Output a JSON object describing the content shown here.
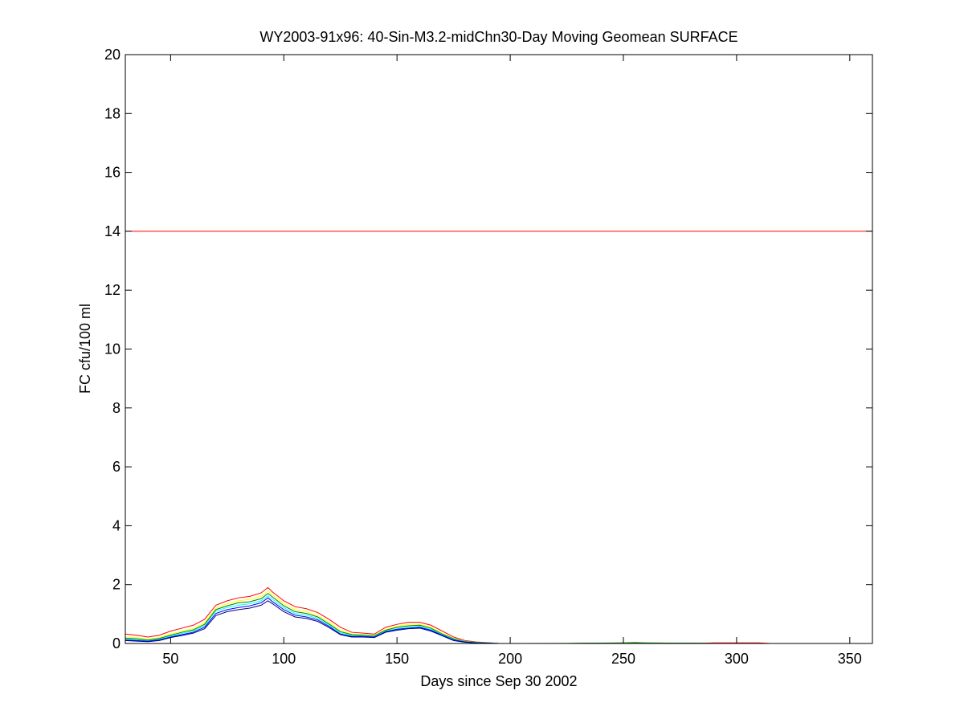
{
  "chart_data": {
    "type": "line",
    "title": "WY2003-91x96: 40-Sin-M3.2-midChn30-Day Moving Geomean SURFACE",
    "xlabel": "Days since Sep 30 2002",
    "ylabel": "FC cfu/100 ml",
    "xlim": [
      30,
      360
    ],
    "ylim": [
      0,
      20
    ],
    "xticks": [
      50,
      100,
      150,
      200,
      250,
      300,
      350
    ],
    "yticks": [
      0,
      2,
      4,
      6,
      8,
      10,
      12,
      14,
      16,
      18,
      20
    ],
    "grid": false,
    "legend": "none",
    "reference_line": {
      "y": 14,
      "color": "#ff0000"
    },
    "x": [
      30,
      35,
      40,
      45,
      50,
      55,
      60,
      65,
      70,
      75,
      80,
      85,
      90,
      93,
      95,
      100,
      105,
      110,
      115,
      120,
      125,
      130,
      135,
      140,
      145,
      150,
      155,
      160,
      165,
      170,
      175,
      180,
      185,
      190,
      195,
      200,
      225,
      230,
      240,
      250,
      255,
      260,
      270,
      280,
      285,
      290,
      300,
      310,
      315,
      320,
      330,
      340,
      350,
      360
    ],
    "series": [
      {
        "color": "#ff0000",
        "values": [
          0.32,
          0.28,
          0.22,
          0.28,
          0.42,
          0.52,
          0.62,
          0.82,
          1.3,
          1.45,
          1.55,
          1.6,
          1.72,
          1.9,
          1.75,
          1.45,
          1.25,
          1.18,
          1.05,
          0.82,
          0.55,
          0.38,
          0.35,
          0.32,
          0.55,
          0.65,
          0.72,
          0.72,
          0.62,
          0.42,
          0.22,
          0.1,
          0.05,
          0.03,
          0.0,
          0.0,
          0.0,
          0.0,
          0.0,
          0.0,
          0.0,
          0.0,
          0.01,
          0.01,
          0.01,
          0.02,
          0.02,
          0.02,
          0.0,
          0.0,
          0.0,
          0.0,
          0.0,
          0.0
        ]
      },
      {
        "color": "#ffff00",
        "values": [
          0.22,
          0.2,
          0.15,
          0.2,
          0.32,
          0.42,
          0.5,
          0.7,
          1.2,
          1.35,
          1.45,
          1.5,
          1.6,
          1.78,
          1.65,
          1.35,
          1.15,
          1.08,
          0.95,
          0.72,
          0.45,
          0.32,
          0.3,
          0.28,
          0.48,
          0.58,
          0.65,
          0.65,
          0.55,
          0.35,
          0.18,
          0.08,
          0.04,
          0.02,
          0.0,
          0.0,
          0.0,
          0.0,
          0.0,
          0.0,
          0.0,
          0.0,
          0.0,
          0.0,
          0.0,
          0.0,
          0.0,
          0.0,
          0.0,
          0.0,
          0.0,
          0.0,
          0.0,
          0.0
        ]
      },
      {
        "color": "#008000",
        "values": [
          0.18,
          0.16,
          0.12,
          0.17,
          0.28,
          0.38,
          0.46,
          0.65,
          1.15,
          1.28,
          1.38,
          1.42,
          1.52,
          1.7,
          1.58,
          1.28,
          1.08,
          1.02,
          0.9,
          0.66,
          0.4,
          0.3,
          0.28,
          0.26,
          0.45,
          0.55,
          0.6,
          0.62,
          0.52,
          0.32,
          0.16,
          0.07,
          0.04,
          0.02,
          0.0,
          0.0,
          0.005,
          0.01,
          0.015,
          0.02,
          0.03,
          0.02,
          0.015,
          0.015,
          0.01,
          0.0,
          0.0,
          0.0,
          0.0,
          0.0,
          0.0,
          0.0,
          0.0,
          0.0
        ]
      },
      {
        "color": "#00ffff",
        "values": [
          0.14,
          0.13,
          0.1,
          0.14,
          0.25,
          0.34,
          0.42,
          0.6,
          1.1,
          1.22,
          1.3,
          1.35,
          1.45,
          1.62,
          1.5,
          1.22,
          1.02,
          0.96,
          0.85,
          0.62,
          0.36,
          0.27,
          0.26,
          0.24,
          0.42,
          0.5,
          0.56,
          0.58,
          0.48,
          0.3,
          0.14,
          0.06,
          0.03,
          0.02,
          0.0,
          0.0,
          0.0,
          0.0,
          0.0,
          0.0,
          0.0,
          0.0,
          0.0,
          0.0,
          0.0,
          0.0,
          0.0,
          0.0,
          0.0,
          0.0,
          0.0,
          0.0,
          0.0,
          0.0
        ]
      },
      {
        "color": "#0000ff",
        "values": [
          0.12,
          0.1,
          0.08,
          0.12,
          0.22,
          0.3,
          0.38,
          0.55,
          1.02,
          1.15,
          1.22,
          1.28,
          1.38,
          1.55,
          1.42,
          1.15,
          0.96,
          0.9,
          0.8,
          0.58,
          0.32,
          0.24,
          0.24,
          0.22,
          0.4,
          0.48,
          0.52,
          0.55,
          0.45,
          0.28,
          0.12,
          0.05,
          0.02,
          0.01,
          0.0,
          0.0,
          0.0,
          0.0,
          0.0,
          0.0,
          0.0,
          0.0,
          0.0,
          0.0,
          0.0,
          0.0,
          0.0,
          0.0,
          0.0,
          0.0,
          0.0,
          0.0,
          0.0,
          0.0
        ]
      },
      {
        "color": "#000080",
        "values": [
          0.1,
          0.08,
          0.06,
          0.1,
          0.2,
          0.27,
          0.35,
          0.5,
          0.95,
          1.08,
          1.15,
          1.2,
          1.3,
          1.45,
          1.35,
          1.08,
          0.9,
          0.85,
          0.75,
          0.54,
          0.3,
          0.22,
          0.22,
          0.2,
          0.38,
          0.45,
          0.5,
          0.52,
          0.42,
          0.26,
          0.1,
          0.04,
          0.02,
          0.01,
          0.0,
          0.0,
          0.0,
          0.0,
          0.0,
          0.0,
          0.0,
          0.0,
          0.0,
          0.0,
          0.0,
          0.0,
          0.0,
          0.0,
          0.0,
          0.0,
          0.0,
          0.0,
          0.0,
          0.0
        ]
      }
    ]
  }
}
